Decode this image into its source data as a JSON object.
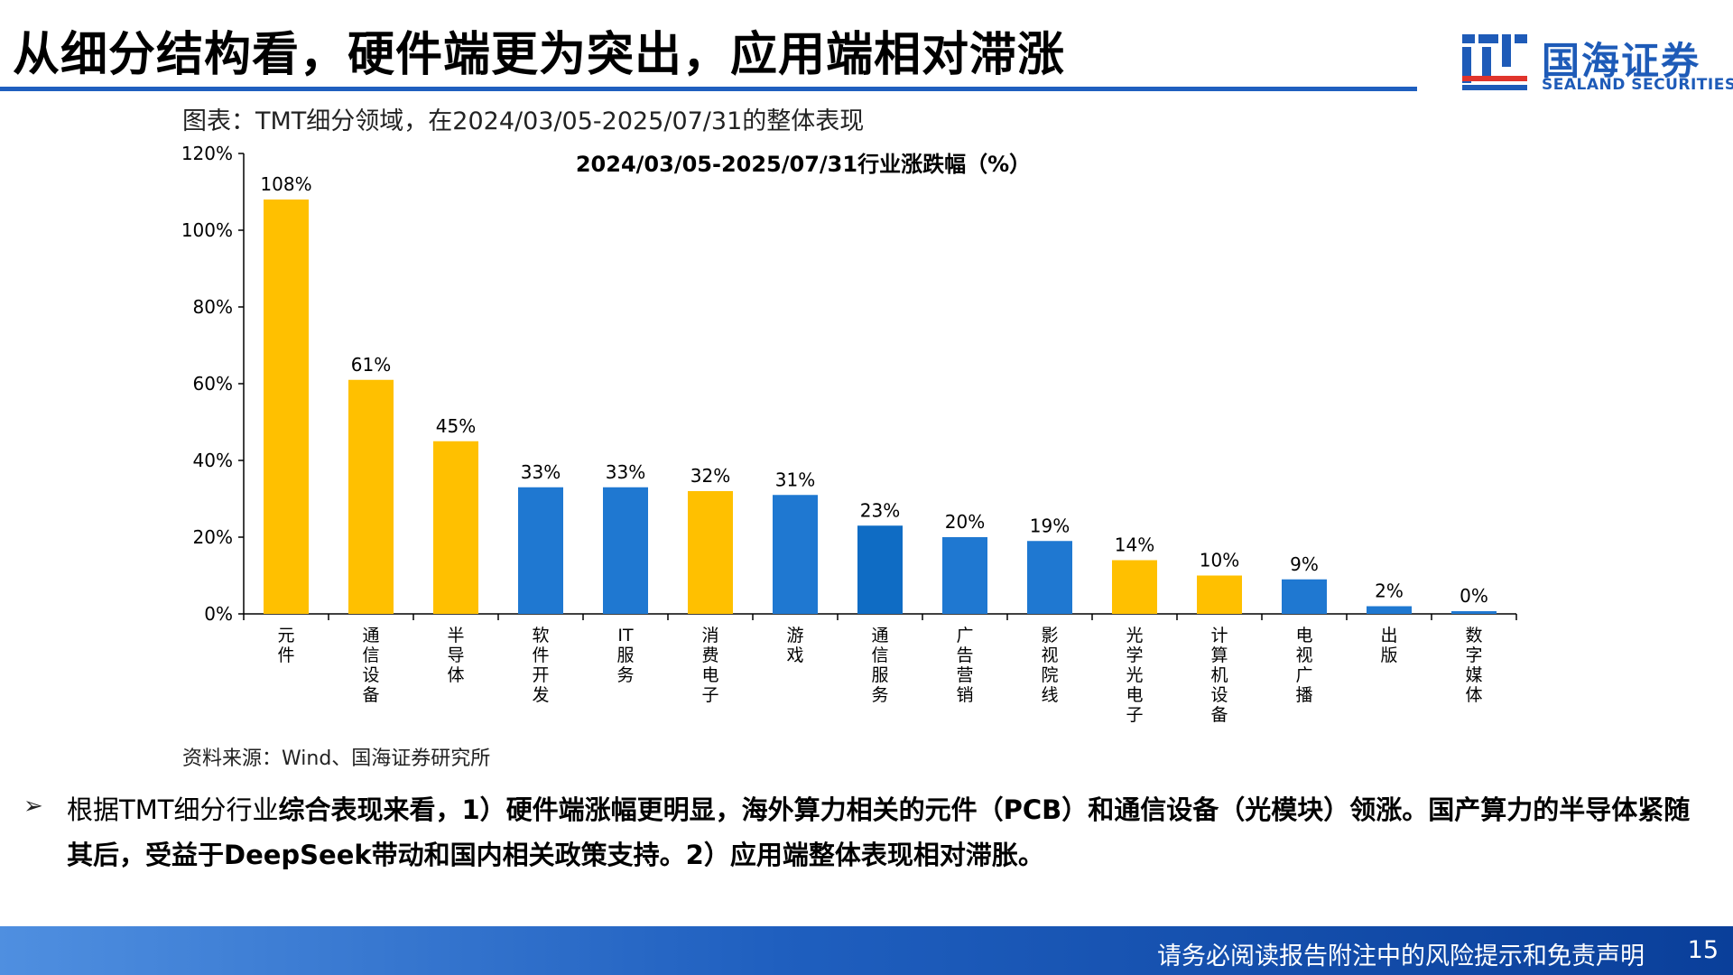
{
  "header": {
    "title": "从细分结构看，硬件端更为突出，应用端相对滞涨"
  },
  "logo": {
    "name_cn": "国海证券",
    "name_en": "SEALAND SECURITIES",
    "brand_color": "#1e5bb8"
  },
  "figure": {
    "caption": "图表：TMT细分领域，在2024/03/05-2025/07/31的整体表现",
    "source": "资料来源：Wind、国海证券研究所"
  },
  "chart_data": {
    "type": "bar",
    "title": "2024/03/05-2025/07/31行业涨跌幅（%）",
    "xlabel": "",
    "ylabel": "",
    "ylim": [
      0,
      120
    ],
    "yticks": [
      "0%",
      "20%",
      "40%",
      "60%",
      "80%",
      "100%",
      "120%"
    ],
    "grid": false,
    "legend": "none",
    "categories": [
      "元件",
      "通信设备",
      "半导体",
      "软件开发",
      "IT服务",
      "消费电子",
      "游戏",
      "通信服务",
      "广告营销",
      "影视院线",
      "光学光电子",
      "计算机设备",
      "电视广播",
      "出版",
      "数字媒体"
    ],
    "values": [
      108,
      61,
      45,
      33,
      33,
      32,
      31,
      23,
      20,
      19,
      14,
      10,
      9,
      2,
      0
    ],
    "data_labels": [
      "108%",
      "61%",
      "45%",
      "33%",
      "33%",
      "32%",
      "31%",
      "23%",
      "20%",
      "19%",
      "14%",
      "10%",
      "9%",
      "2%",
      "0%"
    ],
    "group": [
      "hardware",
      "hardware",
      "hardware",
      "application",
      "application",
      "hardware",
      "application",
      "application",
      "application",
      "application",
      "hardware",
      "hardware",
      "application",
      "application",
      "application"
    ],
    "colors": {
      "hardware": "#ffc000",
      "application": "#1f78d1",
      "communication_service": "#0f6cc4"
    }
  },
  "bullet": {
    "icon": "arrow-bullet-icon",
    "part1": "根据TMT细分行业",
    "part2": "综合表现来看，1）硬件端涨幅更明显，海外算力相关的元件（PCB）和通信设备（光模块）领涨。国产算力的半导体紧随其后，受益于DeepSeek带动和国内相关政策支持。2）应用端整体表现相对滞胀。"
  },
  "footer": {
    "disclaimer": "请务必阅读报告附注中的风险提示和免责声明",
    "page": "15"
  }
}
